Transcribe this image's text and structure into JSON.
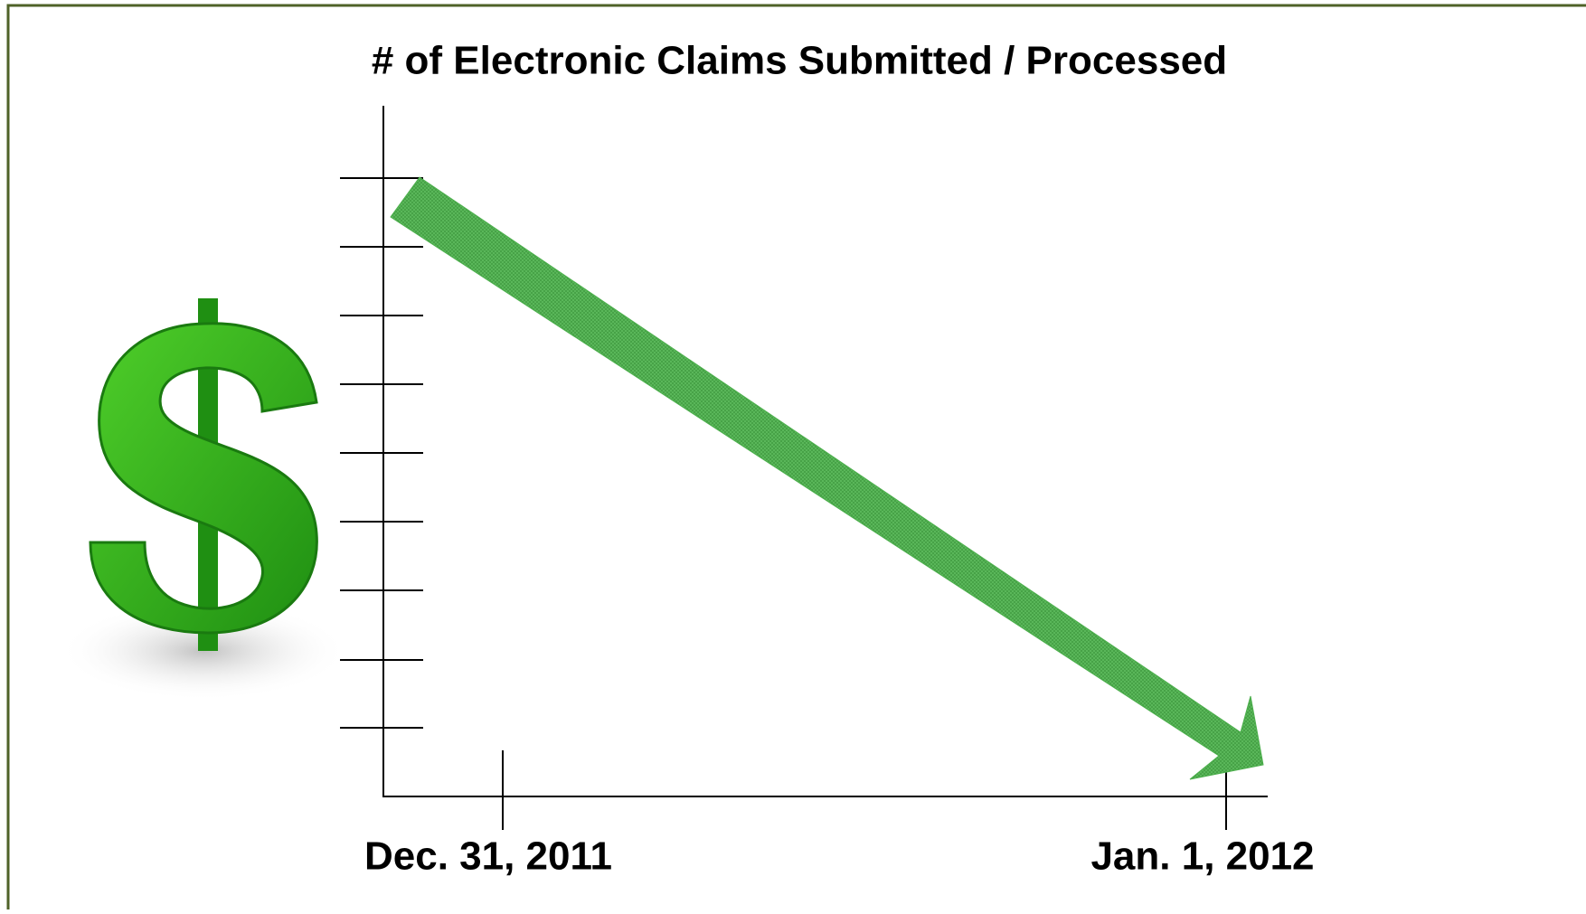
{
  "title": "# of Electronic Claims Submitted / Processed",
  "x_labels": [
    "Dec. 31, 2011",
    "Jan. 1, 2012"
  ]
}
